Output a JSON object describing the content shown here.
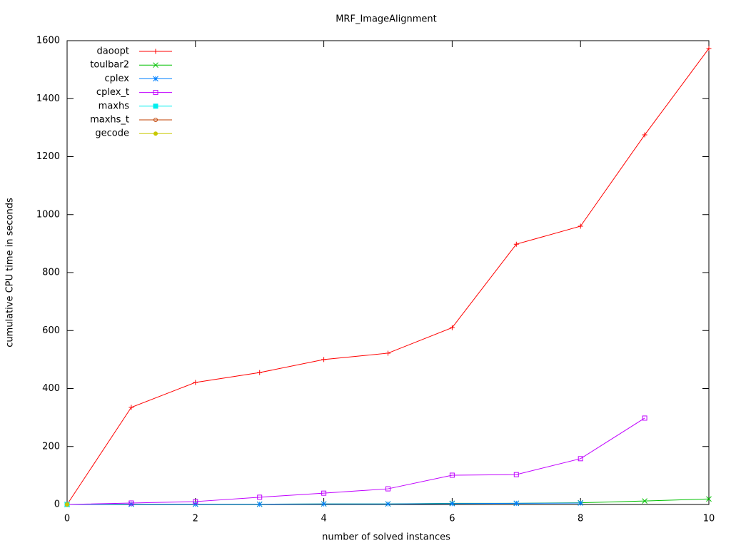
{
  "chart_data": {
    "type": "line",
    "title": "MRF_ImageAlignment",
    "x_label": "number of solved instances",
    "y_label": "cumulative CPU time in seconds",
    "x": [
      0,
      1,
      2,
      3,
      4,
      5,
      6,
      7,
      8,
      9,
      10
    ],
    "series": [
      {
        "name": "daoopt",
        "color": "#ff0000",
        "marker": "plus",
        "values": [
          0,
          335,
          421,
          455,
          500,
          522,
          610,
          898,
          960,
          1275,
          1573
        ]
      },
      {
        "name": "toulbar2",
        "color": "#00c000",
        "marker": "cross",
        "values": [
          0,
          1,
          1,
          1,
          2,
          2,
          4,
          4,
          6,
          12,
          19
        ]
      },
      {
        "name": "cplex",
        "color": "#0080ff",
        "marker": "star",
        "values": [
          0,
          1,
          1,
          1,
          2,
          2,
          3,
          4,
          5,
          null,
          null
        ]
      },
      {
        "name": "cplex_t",
        "color": "#c000ff",
        "marker": "open-square",
        "values": [
          0,
          5,
          10,
          25,
          39,
          54,
          101,
          103,
          158,
          298,
          null
        ]
      },
      {
        "name": "maxhs",
        "color": "#00eeee",
        "marker": "filled-square",
        "values": [
          0,
          null,
          null,
          null,
          null,
          null,
          null,
          null,
          null,
          null,
          null
        ]
      },
      {
        "name": "maxhs_t",
        "color": "#c04000",
        "marker": "open-circle",
        "values": [
          0,
          null,
          null,
          null,
          null,
          null,
          null,
          null,
          null,
          null,
          null
        ]
      },
      {
        "name": "gecode",
        "color": "#c8c800",
        "marker": "filled-circle",
        "values": [
          0,
          null,
          null,
          null,
          null,
          null,
          null,
          null,
          null,
          null,
          null
        ]
      }
    ],
    "xlim": [
      0,
      10
    ],
    "xticks": [
      0,
      2,
      4,
      6,
      8,
      10
    ],
    "ylim": [
      0,
      1600
    ],
    "yticks": [
      0,
      200,
      400,
      600,
      800,
      1000,
      1200,
      1400,
      1600
    ],
    "grid": false,
    "legend": "top-left"
  }
}
